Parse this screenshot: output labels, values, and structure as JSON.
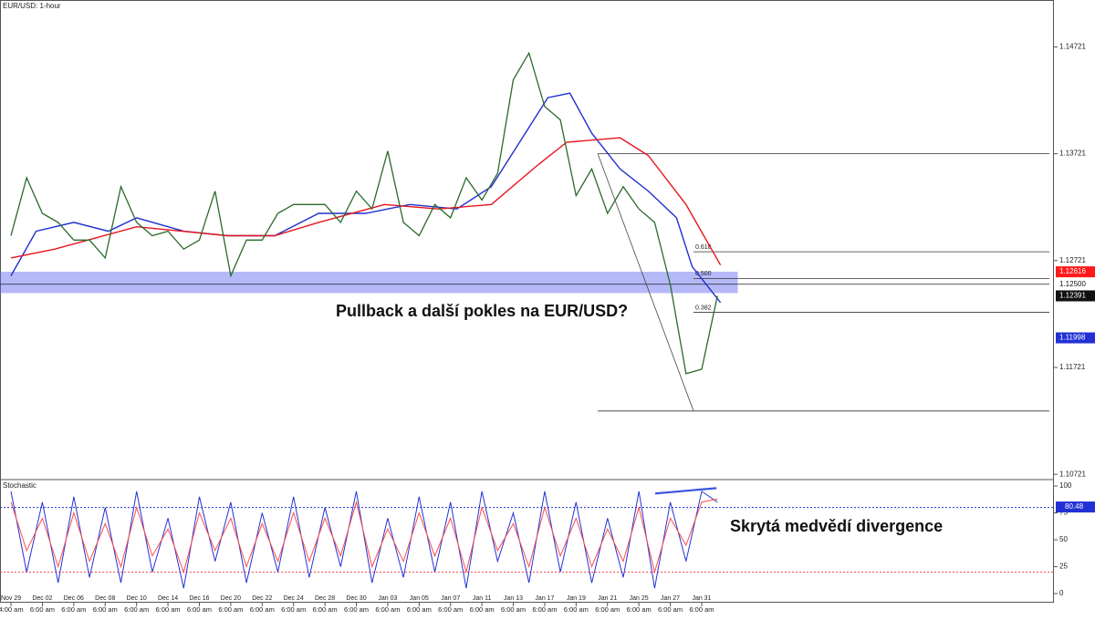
{
  "chart_data": [
    {
      "type": "line",
      "title": "EUR/USD: 1-hour",
      "xlim": [
        -0.35,
        33.22
      ],
      "ylim": [
        1.1068,
        1.1516
      ],
      "xticks": [
        {
          "value": 0,
          "label": "Nov 29"
        },
        {
          "value": 1,
          "label": "Dec 02"
        },
        {
          "value": 2,
          "label": "Dec 06"
        },
        {
          "value": 3,
          "label": "Dec 08"
        },
        {
          "value": 4,
          "label": "Dec 10"
        },
        {
          "value": 5,
          "label": "Dec 14"
        },
        {
          "value": 6,
          "label": "Dec 16"
        },
        {
          "value": 7,
          "label": "Dec 20"
        },
        {
          "value": 8,
          "label": "Dec 22"
        },
        {
          "value": 9,
          "label": "Dec 24"
        },
        {
          "value": 10,
          "label": "Dec 28"
        },
        {
          "value": 11,
          "label": "Dec 30"
        },
        {
          "value": 12,
          "label": "Jan 03"
        },
        {
          "value": 13,
          "label": "Jan 05"
        },
        {
          "value": 14,
          "label": "Jan 07"
        },
        {
          "value": 15,
          "label": "Jan 11"
        },
        {
          "value": 16,
          "label": "Jan 13"
        },
        {
          "value": 17,
          "label": "Jan 17"
        },
        {
          "value": 18,
          "label": "Jan 19"
        },
        {
          "value": 19,
          "label": "Jan 21"
        },
        {
          "value": 20,
          "label": "Jan 25"
        },
        {
          "value": 21,
          "label": "Jan 27"
        },
        {
          "value": 22,
          "label": "Jan 31"
        }
      ],
      "xtick_sublabels": [
        "4:00 am",
        "6:00 am",
        "6:00 am",
        "6:00 am",
        "6:00 am",
        "6:00 am",
        "6:00 am",
        "6:00 am",
        "6:00 am",
        "6:00 am",
        "6:00 am",
        "6:00 am",
        "6:00 am",
        "6:00 am",
        "6:00 am",
        "6:00 am",
        "6:00 am",
        "6:00 am",
        "6:00 am",
        "6:00 am",
        "6:00 am",
        "6:00 am",
        "6:00 am"
      ],
      "yticks": [
        1.10721,
        1.11721,
        1.12721,
        1.13721,
        1.14721
      ],
      "x": [
        0,
        0.5,
        1,
        1.5,
        2,
        2.5,
        3,
        3.5,
        4,
        4.5,
        5,
        5.5,
        6,
        6.5,
        7,
        7.5,
        8,
        8.5,
        9,
        9.5,
        10,
        10.5,
        11,
        11.5,
        12,
        12.5,
        13,
        13.5,
        14,
        14.5,
        15,
        15.5,
        16,
        16.5,
        17,
        17.5,
        18,
        18.5,
        19,
        19.5,
        20,
        20.5,
        21,
        21.5,
        22,
        22.5
      ],
      "series": [
        {
          "color": "#2a6a2a",
          "values": [
            1.12954,
            1.13496,
            1.13163,
            1.13079,
            1.12913,
            1.12913,
            1.12746,
            1.13413,
            1.13079,
            1.12954,
            1.12996,
            1.12829,
            1.12913,
            1.13371,
            1.12579,
            1.12913,
            1.12913,
            1.13163,
            1.13246,
            1.13246,
            1.13246,
            1.13079,
            1.13371,
            1.13204,
            1.13746,
            1.13079,
            1.12954,
            1.13246,
            1.13121,
            1.13496,
            1.13288,
            1.13538,
            1.14413,
            1.14663,
            1.14163,
            1.14038,
            1.13329,
            1.13579,
            1.13163,
            1.13413,
            1.13204,
            1.13079,
            1.12496,
            1.11663,
            1.11704,
            1.12391
          ]
        }
      ],
      "indicators": [
        {
          "color": "#1f2fd0",
          "x": [
            0,
            0.8,
            2,
            3.1,
            4,
            5.5,
            6.9,
            8.4,
            9.8,
            11.3,
            12.7,
            14.2,
            15.3,
            16.2,
            17.1,
            17.8,
            18.5,
            19.4,
            20.3,
            21.2,
            21.7,
            22.6
          ],
          "values": [
            1.12579,
            1.12996,
            1.13079,
            1.12996,
            1.13121,
            1.12996,
            1.12954,
            1.12954,
            1.13163,
            1.13163,
            1.13246,
            1.13204,
            1.13413,
            1.13829,
            1.14246,
            1.14288,
            1.13913,
            1.13579,
            1.13371,
            1.13121,
            1.12663,
            1.12329
          ]
        },
        {
          "color": "#e8141c",
          "x": [
            0,
            1.4,
            4,
            6.9,
            8.4,
            9.8,
            11.9,
            13.6,
            15.3,
            16.8,
            17.7,
            19.4,
            20.3,
            21.5,
            22.6
          ],
          "values": [
            1.12746,
            1.12829,
            1.13038,
            1.12954,
            1.12954,
            1.13079,
            1.13246,
            1.13204,
            1.13246,
            1.13621,
            1.13829,
            1.13871,
            1.13704,
            1.13246,
            1.12679
          ]
        }
      ],
      "zone": [
        1.12617,
        1.12417
      ],
      "zone_x": [
        -0.35,
        23.15
      ],
      "level": {
        "value": 1.125,
        "label": "1.12500"
      },
      "fib": {
        "x": [
          18.69,
          21.74
        ],
        "levels": [
          {
            "value": 1.13721
          },
          {
            "value": 1.12804,
            "label": "0.618"
          },
          {
            "value": 1.12554,
            "label": "0.500"
          },
          {
            "value": 1.12238,
            "label": "0.382"
          },
          {
            "value": 1.11313
          }
        ]
      },
      "price_tags": [
        {
          "value": 1.12616,
          "color": "#ff1a1a"
        },
        {
          "value": 1.12391,
          "color": "#111111"
        },
        {
          "value": 1.11998,
          "color": "#2231d6"
        }
      ],
      "annotation": "Pullback a další pokles na EUR/USD?"
    },
    {
      "type": "line",
      "title": "Stochastic",
      "xlim": [
        -0.35,
        33.22
      ],
      "ylim": [
        -7.6,
        105.1
      ],
      "yticks": [
        0,
        25,
        50,
        75,
        100
      ],
      "x": [
        0,
        0.5,
        1,
        1.5,
        2,
        2.5,
        3,
        3.5,
        4,
        4.5,
        5,
        5.5,
        6,
        6.5,
        7,
        7.5,
        8,
        8.5,
        9,
        9.5,
        10,
        10.5,
        11,
        11.5,
        12,
        12.5,
        13,
        13.5,
        14,
        14.5,
        15,
        15.5,
        16,
        16.5,
        17,
        17.5,
        18,
        18.5,
        19,
        19.5,
        20,
        20.5,
        21,
        21.5,
        22,
        22.5
      ],
      "series": [
        {
          "color": "#2231d6",
          "values": [
            95,
            20,
            85,
            10,
            90,
            15,
            80,
            10,
            95,
            20,
            70,
            5,
            90,
            30,
            85,
            10,
            75,
            20,
            90,
            15,
            80,
            25,
            95,
            10,
            70,
            15,
            90,
            20,
            85,
            5,
            95,
            30,
            75,
            10,
            95,
            20,
            85,
            10,
            70,
            15,
            95,
            5,
            85,
            30,
            95,
            85
          ]
        },
        {
          "color": "#ff4d4d",
          "values": [
            85,
            40,
            70,
            25,
            75,
            30,
            65,
            25,
            80,
            35,
            60,
            20,
            75,
            40,
            70,
            25,
            65,
            30,
            75,
            30,
            70,
            35,
            85,
            25,
            60,
            30,
            75,
            35,
            70,
            20,
            80,
            40,
            65,
            25,
            80,
            35,
            70,
            25,
            60,
            30,
            80,
            20,
            70,
            45,
            85,
            88
          ]
        }
      ],
      "levels": [
        {
          "value": 80,
          "color": "#2231d6"
        },
        {
          "value": 20,
          "color": "#ff3333"
        }
      ],
      "tag": {
        "value": 80.48,
        "color": "#2231d6"
      },
      "divergence": {
        "x": [
          20.52,
          22.47
        ],
        "values": [
          93,
          98
        ],
        "color": "#3a55e0"
      },
      "annotation": "Skrytá medvědí divergence"
    }
  ]
}
